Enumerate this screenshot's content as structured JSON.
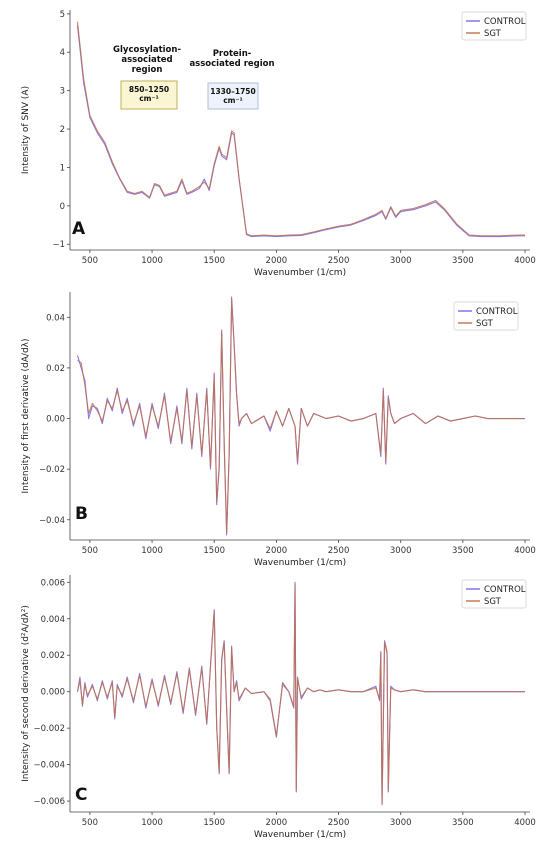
{
  "figure": {
    "colors": {
      "control": "#7b68ee",
      "sgt": "#c0704a",
      "overlap": "#b2447a"
    }
  },
  "chart_data": [
    {
      "type": "line",
      "panel_label": "A",
      "xlabel": "Wavenumber (1/cm)",
      "ylabel": "Intensity of SNV (A)",
      "xlim": [
        340,
        4040
      ],
      "ylim": [
        -1.15,
        5.1
      ],
      "xticks": [
        500,
        1000,
        1500,
        2000,
        2500,
        3000,
        3500,
        4000
      ],
      "yticks": [
        -1,
        0,
        1,
        2,
        3,
        4,
        5
      ],
      "xtick_labels": [
        "500",
        "1000",
        "1500",
        "2000",
        "2500",
        "3000",
        "3500",
        "4000"
      ],
      "ytick_labels": [
        "−1",
        "0",
        "1",
        "2",
        "3",
        "4",
        "5"
      ],
      "legend_position": "top-right",
      "grid": false,
      "series": [
        {
          "name": "CONTROL",
          "color": "#7b68ee",
          "x": [
            400,
            450,
            500,
            560,
            620,
            680,
            740,
            800,
            860,
            920,
            980,
            1020,
            1060,
            1100,
            1150,
            1200,
            1240,
            1280,
            1320,
            1380,
            1420,
            1460,
            1500,
            1540,
            1560,
            1600,
            1640,
            1660,
            1700,
            1760,
            1800,
            1900,
            2000,
            2100,
            2200,
            2300,
            2400,
            2500,
            2600,
            2700,
            2800,
            2850,
            2880,
            2920,
            2960,
            3000,
            3100,
            3200,
            3280,
            3350,
            3450,
            3550,
            3650,
            3800,
            3950,
            4000
          ],
          "y": [
            4.7,
            3.2,
            2.3,
            1.9,
            1.6,
            1.1,
            0.7,
            0.35,
            0.3,
            0.35,
            0.2,
            0.55,
            0.5,
            0.25,
            0.3,
            0.35,
            0.65,
            0.3,
            0.35,
            0.45,
            0.7,
            0.4,
            1.05,
            1.5,
            1.3,
            1.2,
            1.9,
            1.85,
            0.7,
            -0.75,
            -0.8,
            -0.78,
            -0.8,
            -0.78,
            -0.77,
            -0.7,
            -0.62,
            -0.55,
            -0.5,
            -0.38,
            -0.25,
            -0.15,
            -0.35,
            -0.05,
            -0.3,
            -0.15,
            -0.1,
            0.0,
            0.1,
            -0.1,
            -0.5,
            -0.78,
            -0.8,
            -0.8,
            -0.78,
            -0.78
          ]
        },
        {
          "name": "SGT",
          "color": "#c0704a",
          "x": [
            400,
            450,
            500,
            560,
            620,
            680,
            740,
            800,
            860,
            920,
            980,
            1020,
            1060,
            1100,
            1150,
            1200,
            1240,
            1280,
            1320,
            1380,
            1420,
            1460,
            1500,
            1540,
            1560,
            1600,
            1640,
            1660,
            1700,
            1760,
            1800,
            1900,
            2000,
            2100,
            2200,
            2300,
            2400,
            2500,
            2600,
            2700,
            2800,
            2850,
            2880,
            2920,
            2960,
            3000,
            3100,
            3200,
            3280,
            3350,
            3450,
            3550,
            3650,
            3800,
            3950,
            4000
          ],
          "y": [
            4.8,
            3.3,
            2.35,
            1.95,
            1.65,
            1.15,
            0.72,
            0.38,
            0.32,
            0.38,
            0.22,
            0.58,
            0.53,
            0.28,
            0.33,
            0.38,
            0.7,
            0.33,
            0.38,
            0.5,
            0.62,
            0.45,
            1.1,
            1.55,
            1.35,
            1.25,
            1.95,
            1.9,
            0.72,
            -0.73,
            -0.78,
            -0.76,
            -0.78,
            -0.76,
            -0.75,
            -0.68,
            -0.6,
            -0.53,
            -0.48,
            -0.36,
            -0.22,
            -0.12,
            -0.33,
            -0.02,
            -0.27,
            -0.12,
            -0.07,
            0.03,
            0.14,
            -0.07,
            -0.47,
            -0.76,
            -0.78,
            -0.78,
            -0.76,
            -0.76
          ]
        }
      ],
      "annotations": [
        {
          "title_lines": [
            "Glycosylation-",
            "associated",
            "region"
          ],
          "box_lines": [
            "850–1250",
            "cm⁻¹"
          ],
          "box_fill": "#faf5d2",
          "box_stroke": "#b8a84a"
        },
        {
          "title_lines": [
            "Protein-",
            "associated region"
          ],
          "box_lines": [
            "1330–1750",
            "cm⁻¹"
          ],
          "box_fill": "#eef3fb",
          "box_stroke": "#a9b8d6"
        }
      ]
    },
    {
      "type": "line",
      "panel_label": "B",
      "xlabel": "Wavenumber (1/cm)",
      "ylabel": "Intensity of first derivative (dA/dλ)",
      "xlim": [
        340,
        4040
      ],
      "ylim": [
        -0.048,
        0.05
      ],
      "xticks": [
        500,
        1000,
        1500,
        2000,
        2500,
        3000,
        3500,
        4000
      ],
      "yticks": [
        -0.04,
        -0.02,
        0.0,
        0.02,
        0.04
      ],
      "xtick_labels": [
        "500",
        "1000",
        "1500",
        "2000",
        "2500",
        "3000",
        "3500",
        "4000"
      ],
      "ytick_labels": [
        "−0.04",
        "−0.02",
        "0.00",
        "0.02",
        "0.04"
      ],
      "legend_position": "top-right",
      "grid": false,
      "series": [
        {
          "name": "CONTROL",
          "color": "#7b68ee",
          "x": [
            400,
            430,
            460,
            490,
            520,
            560,
            600,
            640,
            680,
            720,
            760,
            800,
            850,
            900,
            950,
            1000,
            1050,
            1100,
            1150,
            1200,
            1240,
            1280,
            1320,
            1360,
            1400,
            1440,
            1470,
            1500,
            1520,
            1540,
            1560,
            1580,
            1600,
            1620,
            1640,
            1660,
            1680,
            1700,
            1720,
            1760,
            1800,
            1900,
            1950,
            2000,
            2050,
            2100,
            2150,
            2170,
            2200,
            2250,
            2300,
            2400,
            2500,
            2600,
            2700,
            2800,
            2840,
            2860,
            2880,
            2900,
            2920,
            2950,
            3000,
            3100,
            3200,
            3300,
            3400,
            3500,
            3600,
            3700,
            3800,
            3900,
            4000
          ],
          "y": [
            0.025,
            0.02,
            0.015,
            0.0,
            0.005,
            0.004,
            -0.002,
            0.008,
            0.003,
            0.012,
            0.002,
            0.008,
            -0.003,
            0.006,
            -0.008,
            0.006,
            -0.004,
            0.01,
            -0.01,
            0.005,
            -0.01,
            0.012,
            -0.012,
            0.01,
            -0.015,
            0.012,
            -0.02,
            0.018,
            -0.034,
            -0.02,
            0.035,
            -0.01,
            -0.046,
            -0.015,
            0.048,
            0.03,
            0.01,
            -0.003,
            0.0,
            0.002,
            -0.002,
            0.001,
            -0.005,
            0.003,
            -0.003,
            0.004,
            -0.003,
            -0.018,
            0.004,
            -0.003,
            0.002,
            0.0,
            0.001,
            -0.001,
            0.0,
            0.002,
            -0.015,
            0.012,
            -0.018,
            0.009,
            0.002,
            -0.002,
            0.0,
            0.002,
            -0.002,
            0.001,
            -0.001,
            0.0,
            0.001,
            0.0,
            0.0,
            0.0,
            0.0
          ]
        },
        {
          "name": "SGT",
          "color": "#c0704a",
          "x": [
            400,
            430,
            460,
            490,
            520,
            560,
            600,
            640,
            680,
            720,
            760,
            800,
            850,
            900,
            950,
            1000,
            1050,
            1100,
            1150,
            1200,
            1240,
            1280,
            1320,
            1360,
            1400,
            1440,
            1470,
            1500,
            1520,
            1540,
            1560,
            1580,
            1600,
            1620,
            1640,
            1660,
            1680,
            1700,
            1720,
            1760,
            1800,
            1900,
            1950,
            2000,
            2050,
            2100,
            2150,
            2170,
            2200,
            2250,
            2300,
            2400,
            2500,
            2600,
            2700,
            2800,
            2840,
            2860,
            2880,
            2900,
            2920,
            2950,
            3000,
            3100,
            3200,
            3300,
            3400,
            3500,
            3600,
            3700,
            3800,
            3900,
            4000
          ],
          "y": [
            0.023,
            0.022,
            0.013,
            0.002,
            0.006,
            0.003,
            -0.001,
            0.007,
            0.004,
            0.011,
            0.003,
            0.007,
            -0.002,
            0.005,
            -0.007,
            0.005,
            -0.003,
            0.009,
            -0.009,
            0.004,
            -0.009,
            0.011,
            -0.011,
            0.009,
            -0.014,
            0.011,
            -0.019,
            0.017,
            -0.033,
            -0.019,
            0.034,
            -0.009,
            -0.045,
            -0.014,
            0.047,
            0.029,
            0.009,
            -0.002,
            0.0,
            0.002,
            -0.002,
            0.001,
            -0.004,
            0.003,
            -0.003,
            0.004,
            -0.003,
            -0.017,
            0.004,
            -0.003,
            0.002,
            0.0,
            0.001,
            -0.001,
            0.0,
            0.002,
            -0.014,
            0.011,
            -0.017,
            0.008,
            0.002,
            -0.002,
            0.0,
            0.002,
            -0.002,
            0.001,
            -0.001,
            0.0,
            0.001,
            0.0,
            0.0,
            0.0,
            0.0
          ]
        }
      ]
    },
    {
      "type": "line",
      "panel_label": "C",
      "xlabel": "Wavenumber (1/cm)",
      "ylabel": "Intensity of second derivative (d²A/dλ²)",
      "xlim": [
        340,
        4040
      ],
      "ylim": [
        -0.0066,
        0.0064
      ],
      "xticks": [
        500,
        1000,
        1500,
        2000,
        2500,
        3000,
        3500,
        4000
      ],
      "yticks": [
        -0.006,
        -0.004,
        -0.002,
        0.0,
        0.002,
        0.004,
        0.006
      ],
      "xtick_labels": [
        "500",
        "1000",
        "1500",
        "2000",
        "2500",
        "3000",
        "3500",
        "4000"
      ],
      "ytick_labels": [
        "−0.006",
        "−0.004",
        "−0.002",
        "0.000",
        "0.002",
        "0.004",
        "0.006"
      ],
      "legend_position": "top-right",
      "grid": false,
      "series": [
        {
          "name": "CONTROL",
          "color": "#7b68ee",
          "x": [
            400,
            420,
            440,
            460,
            480,
            520,
            560,
            600,
            640,
            680,
            700,
            720,
            760,
            800,
            850,
            900,
            950,
            1000,
            1050,
            1100,
            1150,
            1200,
            1250,
            1300,
            1350,
            1400,
            1440,
            1480,
            1500,
            1520,
            1540,
            1560,
            1580,
            1600,
            1620,
            1640,
            1660,
            1680,
            1700,
            1750,
            1800,
            1900,
            1950,
            2000,
            2050,
            2100,
            2140,
            2150,
            2160,
            2170,
            2200,
            2250,
            2300,
            2350,
            2400,
            2500,
            2600,
            2700,
            2800,
            2830,
            2840,
            2850,
            2870,
            2890,
            2900,
            2920,
            2950,
            3000,
            3100,
            3200,
            3300,
            3400,
            3500,
            3600,
            3700,
            3800,
            3900,
            4000
          ],
          "y": [
            0.0,
            0.0008,
            -0.0008,
            0.0005,
            -0.0003,
            0.0004,
            -0.0005,
            0.0006,
            -0.0004,
            0.0006,
            -0.0015,
            0.0004,
            -0.0003,
            0.0008,
            -0.0006,
            0.001,
            -0.0009,
            0.0007,
            -0.0008,
            0.0009,
            -0.0007,
            0.0011,
            -0.0012,
            0.0013,
            -0.0013,
            0.0014,
            -0.0018,
            0.0025,
            0.0045,
            -0.002,
            -0.0045,
            0.0018,
            0.0028,
            -0.001,
            -0.0045,
            0.0025,
            0.0,
            0.0006,
            -0.0005,
            0.0002,
            -0.0001,
            0.0,
            -0.0005,
            -0.0025,
            0.0005,
            0.0,
            -0.0009,
            0.006,
            -0.0055,
            0.0008,
            -0.0004,
            0.0002,
            0.0,
            0.0001,
            0.0,
            0.0001,
            0.0,
            0.0,
            0.0003,
            -0.0005,
            0.0022,
            -0.0062,
            0.0028,
            0.0022,
            -0.0055,
            0.0003,
            0.0001,
            0.0,
            0.0001,
            0.0,
            0.0,
            0.0,
            0.0,
            0.0,
            0.0,
            0.0,
            0.0,
            0.0
          ]
        },
        {
          "name": "SGT",
          "color": "#c0704a",
          "x": [
            400,
            420,
            440,
            460,
            480,
            520,
            560,
            600,
            640,
            680,
            700,
            720,
            760,
            800,
            850,
            900,
            950,
            1000,
            1050,
            1100,
            1150,
            1200,
            1250,
            1300,
            1350,
            1400,
            1440,
            1480,
            1500,
            1520,
            1540,
            1560,
            1580,
            1600,
            1620,
            1640,
            1660,
            1680,
            1700,
            1750,
            1800,
            1900,
            1950,
            2000,
            2050,
            2100,
            2140,
            2150,
            2160,
            2170,
            2200,
            2250,
            2300,
            2350,
            2400,
            2500,
            2600,
            2700,
            2800,
            2830,
            2840,
            2850,
            2870,
            2890,
            2900,
            2920,
            2950,
            3000,
            3100,
            3200,
            3300,
            3400,
            3500,
            3600,
            3700,
            3800,
            3900,
            4000
          ],
          "y": [
            0.0,
            0.0006,
            -0.0007,
            0.0004,
            -0.0002,
            0.0003,
            -0.0004,
            0.0005,
            -0.0003,
            0.0005,
            -0.0014,
            0.0003,
            -0.0002,
            0.0007,
            -0.0005,
            0.0009,
            -0.0008,
            0.0006,
            -0.0007,
            0.0008,
            -0.0006,
            0.001,
            -0.0011,
            0.0012,
            -0.0012,
            0.0013,
            -0.0017,
            0.0024,
            0.0044,
            -0.0019,
            -0.0044,
            0.0017,
            0.0027,
            -0.0009,
            -0.0044,
            0.0024,
            0.0,
            0.0005,
            -0.0004,
            0.0002,
            -0.0001,
            0.0,
            -0.0004,
            -0.0024,
            0.0004,
            0.0,
            -0.0008,
            0.0059,
            -0.0054,
            0.0007,
            -0.0003,
            0.0002,
            0.0,
            0.0001,
            0.0,
            0.0001,
            0.0,
            0.0,
            0.0002,
            -0.0004,
            0.0021,
            -0.0061,
            0.0027,
            0.0021,
            -0.0054,
            0.0002,
            0.0001,
            0.0,
            0.0001,
            0.0,
            0.0,
            0.0,
            0.0,
            0.0,
            0.0,
            0.0,
            0.0,
            0.0
          ]
        }
      ]
    }
  ]
}
